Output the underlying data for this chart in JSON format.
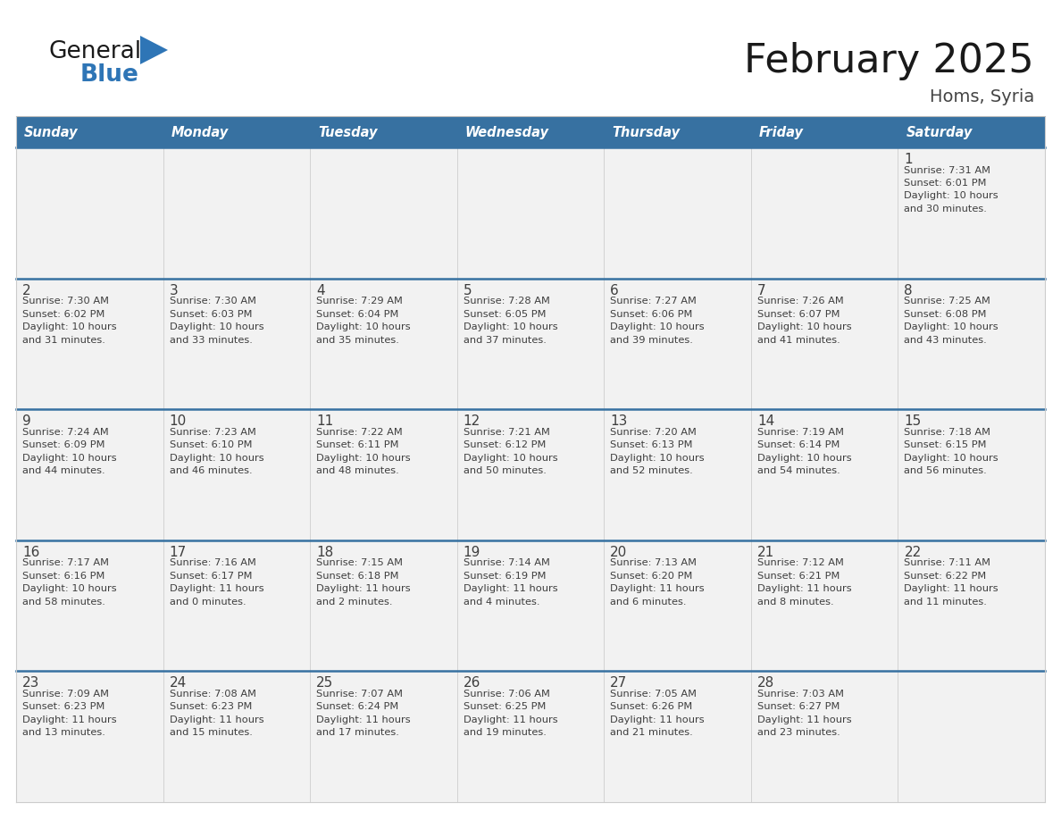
{
  "title": "February 2025",
  "subtitle": "Homs, Syria",
  "header_bg_color": "#3771A1",
  "header_text_color": "#FFFFFF",
  "cell_bg_color": "#F2F2F2",
  "cell_border_color": "#CCCCCC",
  "week_divider_color": "#3771A1",
  "day_number_color": "#3E3E3E",
  "cell_text_color": "#3E3E3E",
  "days_of_week": [
    "Sunday",
    "Monday",
    "Tuesday",
    "Wednesday",
    "Thursday",
    "Friday",
    "Saturday"
  ],
  "calendar_data": [
    [
      null,
      null,
      null,
      null,
      null,
      null,
      {
        "day": "1",
        "sunrise": "7:31 AM",
        "sunset": "6:01 PM",
        "daylight_line1": "Daylight: 10 hours",
        "daylight_line2": "and 30 minutes."
      }
    ],
    [
      {
        "day": "2",
        "sunrise": "7:30 AM",
        "sunset": "6:02 PM",
        "daylight_line1": "Daylight: 10 hours",
        "daylight_line2": "and 31 minutes."
      },
      {
        "day": "3",
        "sunrise": "7:30 AM",
        "sunset": "6:03 PM",
        "daylight_line1": "Daylight: 10 hours",
        "daylight_line2": "and 33 minutes."
      },
      {
        "day": "4",
        "sunrise": "7:29 AM",
        "sunset": "6:04 PM",
        "daylight_line1": "Daylight: 10 hours",
        "daylight_line2": "and 35 minutes."
      },
      {
        "day": "5",
        "sunrise": "7:28 AM",
        "sunset": "6:05 PM",
        "daylight_line1": "Daylight: 10 hours",
        "daylight_line2": "and 37 minutes."
      },
      {
        "day": "6",
        "sunrise": "7:27 AM",
        "sunset": "6:06 PM",
        "daylight_line1": "Daylight: 10 hours",
        "daylight_line2": "and 39 minutes."
      },
      {
        "day": "7",
        "sunrise": "7:26 AM",
        "sunset": "6:07 PM",
        "daylight_line1": "Daylight: 10 hours",
        "daylight_line2": "and 41 minutes."
      },
      {
        "day": "8",
        "sunrise": "7:25 AM",
        "sunset": "6:08 PM",
        "daylight_line1": "Daylight: 10 hours",
        "daylight_line2": "and 43 minutes."
      }
    ],
    [
      {
        "day": "9",
        "sunrise": "7:24 AM",
        "sunset": "6:09 PM",
        "daylight_line1": "Daylight: 10 hours",
        "daylight_line2": "and 44 minutes."
      },
      {
        "day": "10",
        "sunrise": "7:23 AM",
        "sunset": "6:10 PM",
        "daylight_line1": "Daylight: 10 hours",
        "daylight_line2": "and 46 minutes."
      },
      {
        "day": "11",
        "sunrise": "7:22 AM",
        "sunset": "6:11 PM",
        "daylight_line1": "Daylight: 10 hours",
        "daylight_line2": "and 48 minutes."
      },
      {
        "day": "12",
        "sunrise": "7:21 AM",
        "sunset": "6:12 PM",
        "daylight_line1": "Daylight: 10 hours",
        "daylight_line2": "and 50 minutes."
      },
      {
        "day": "13",
        "sunrise": "7:20 AM",
        "sunset": "6:13 PM",
        "daylight_line1": "Daylight: 10 hours",
        "daylight_line2": "and 52 minutes."
      },
      {
        "day": "14",
        "sunrise": "7:19 AM",
        "sunset": "6:14 PM",
        "daylight_line1": "Daylight: 10 hours",
        "daylight_line2": "and 54 minutes."
      },
      {
        "day": "15",
        "sunrise": "7:18 AM",
        "sunset": "6:15 PM",
        "daylight_line1": "Daylight: 10 hours",
        "daylight_line2": "and 56 minutes."
      }
    ],
    [
      {
        "day": "16",
        "sunrise": "7:17 AM",
        "sunset": "6:16 PM",
        "daylight_line1": "Daylight: 10 hours",
        "daylight_line2": "and 58 minutes."
      },
      {
        "day": "17",
        "sunrise": "7:16 AM",
        "sunset": "6:17 PM",
        "daylight_line1": "Daylight: 11 hours",
        "daylight_line2": "and 0 minutes."
      },
      {
        "day": "18",
        "sunrise": "7:15 AM",
        "sunset": "6:18 PM",
        "daylight_line1": "Daylight: 11 hours",
        "daylight_line2": "and 2 minutes."
      },
      {
        "day": "19",
        "sunrise": "7:14 AM",
        "sunset": "6:19 PM",
        "daylight_line1": "Daylight: 11 hours",
        "daylight_line2": "and 4 minutes."
      },
      {
        "day": "20",
        "sunrise": "7:13 AM",
        "sunset": "6:20 PM",
        "daylight_line1": "Daylight: 11 hours",
        "daylight_line2": "and 6 minutes."
      },
      {
        "day": "21",
        "sunrise": "7:12 AM",
        "sunset": "6:21 PM",
        "daylight_line1": "Daylight: 11 hours",
        "daylight_line2": "and 8 minutes."
      },
      {
        "day": "22",
        "sunrise": "7:11 AM",
        "sunset": "6:22 PM",
        "daylight_line1": "Daylight: 11 hours",
        "daylight_line2": "and 11 minutes."
      }
    ],
    [
      {
        "day": "23",
        "sunrise": "7:09 AM",
        "sunset": "6:23 PM",
        "daylight_line1": "Daylight: 11 hours",
        "daylight_line2": "and 13 minutes."
      },
      {
        "day": "24",
        "sunrise": "7:08 AM",
        "sunset": "6:23 PM",
        "daylight_line1": "Daylight: 11 hours",
        "daylight_line2": "and 15 minutes."
      },
      {
        "day": "25",
        "sunrise": "7:07 AM",
        "sunset": "6:24 PM",
        "daylight_line1": "Daylight: 11 hours",
        "daylight_line2": "and 17 minutes."
      },
      {
        "day": "26",
        "sunrise": "7:06 AM",
        "sunset": "6:25 PM",
        "daylight_line1": "Daylight: 11 hours",
        "daylight_line2": "and 19 minutes."
      },
      {
        "day": "27",
        "sunrise": "7:05 AM",
        "sunset": "6:26 PM",
        "daylight_line1": "Daylight: 11 hours",
        "daylight_line2": "and 21 minutes."
      },
      {
        "day": "28",
        "sunrise": "7:03 AM",
        "sunset": "6:27 PM",
        "daylight_line1": "Daylight: 11 hours",
        "daylight_line2": "and 23 minutes."
      },
      null
    ]
  ]
}
